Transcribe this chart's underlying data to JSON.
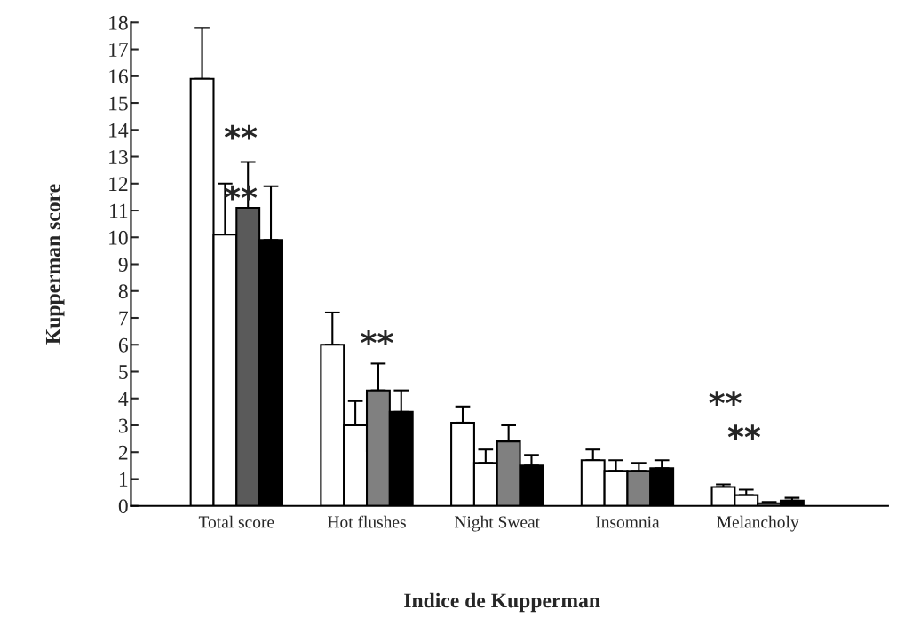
{
  "chart_data": {
    "type": "bar",
    "xlabel": "Indice de Kupperman",
    "ylabel": "Kupperman score",
    "categories": [
      "Total score",
      "Hot flushes",
      "Night Sweat",
      "Insomnia",
      "Melancholy"
    ],
    "series": [
      {
        "color": "#ffffff",
        "values": [
          15.9,
          6.0,
          3.1,
          1.7,
          0.7
        ],
        "errors": [
          [
            15.9,
            17.8
          ],
          [
            6.0,
            7.2
          ],
          [
            3.1,
            3.7
          ],
          [
            1.7,
            2.1
          ],
          [
            0.7,
            0.8
          ]
        ]
      },
      {
        "color": "#ffffff",
        "values": [
          10.1,
          3.0,
          1.6,
          1.3,
          0.4
        ],
        "errors": [
          [
            10.1,
            12.0
          ],
          [
            3.0,
            3.9
          ],
          [
            1.6,
            2.1
          ],
          [
            1.3,
            1.7
          ],
          [
            0.4,
            0.6
          ]
        ]
      },
      {
        "colors": [
          "#5a5a5a",
          "#808080",
          "#808080",
          "#808080",
          "#808080"
        ],
        "values": [
          11.1,
          4.3,
          2.4,
          1.3,
          0.1
        ],
        "errors": [
          [
            11.1,
            12.8
          ],
          [
            4.3,
            5.3
          ],
          [
            2.4,
            3.0
          ],
          [
            1.3,
            1.6
          ],
          [
            0.1,
            0.15
          ]
        ]
      },
      {
        "color": "#000000",
        "values": [
          9.9,
          3.5,
          1.5,
          1.4,
          0.2
        ],
        "errors": [
          [
            9.9,
            11.9
          ],
          [
            3.5,
            4.3
          ],
          [
            1.5,
            1.9
          ],
          [
            1.4,
            1.7
          ],
          [
            0.2,
            0.3
          ]
        ]
      }
    ],
    "annotations": [
      "**",
      "**",
      "**",
      "**",
      "**"
    ],
    "ylim": [
      0,
      18
    ],
    "yticks": [
      0,
      1,
      2,
      3,
      4,
      5,
      6,
      7,
      8,
      9,
      10,
      11,
      12,
      13,
      14,
      15,
      16,
      17,
      18
    ],
    "grid": false,
    "legend": false
  }
}
